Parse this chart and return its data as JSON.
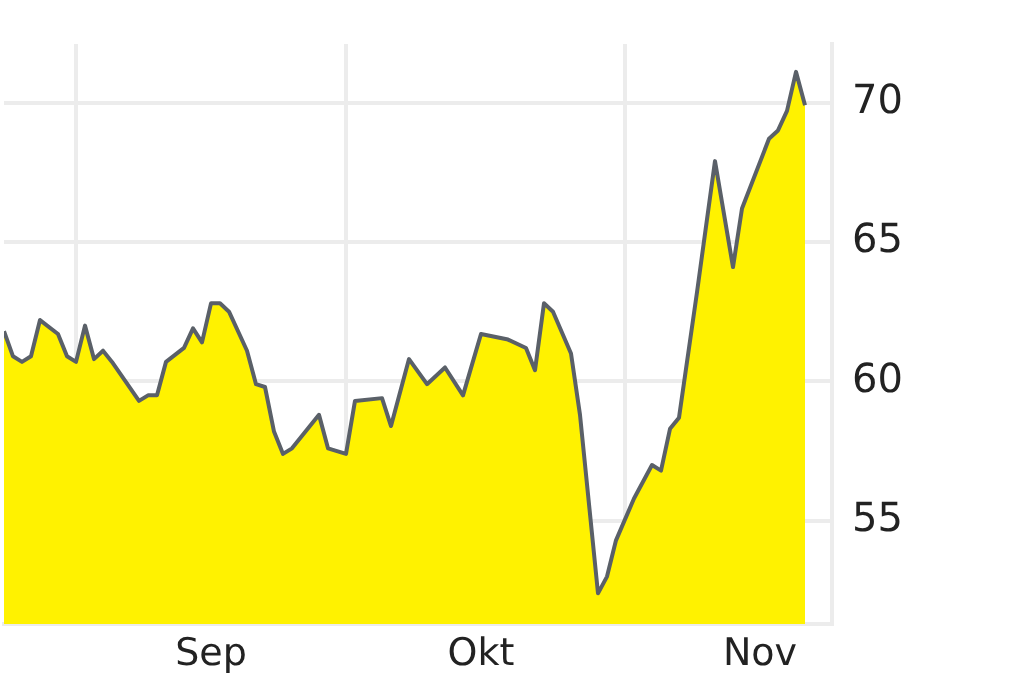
{
  "chart_data": {
    "type": "area",
    "x": [
      "--08-24",
      "--08-25",
      "--08-26",
      "--08-27",
      "--08-28",
      "--08-30",
      "--08-31",
      "--09-01",
      "--09-02",
      "--09-03",
      "--09-04",
      "--09-05",
      "--09-08",
      "--09-09",
      "--09-10",
      "--09-11",
      "--09-13",
      "--09-14",
      "--09-15",
      "--09-16",
      "--09-17",
      "--09-18",
      "--09-20",
      "--09-21",
      "--09-22",
      "--09-23",
      "--09-24",
      "--09-25",
      "--09-28",
      "--09-29",
      "--10-01",
      "--10-02",
      "--10-05",
      "--10-06",
      "--10-08",
      "--10-10",
      "--10-12",
      "--10-14",
      "--10-15",
      "--10-16",
      "--10-19",
      "--10-21",
      "--10-22",
      "--10-23",
      "--10-24",
      "--10-26",
      "--10-27",
      "--10-29",
      "--10-30",
      "--10-31",
      "--11-02",
      "--11-04",
      "--11-05",
      "--11-06",
      "--11-07",
      "--11-09",
      "--11-11",
      "--11-13",
      "--11-14",
      "--11-17",
      "--11-18",
      "--11-19",
      "--11-20",
      "--11-21"
    ],
    "series": [
      {
        "color": "#fff200",
        "values": [
          61.8,
          60.9,
          60.7,
          60.9,
          62.2,
          61.7,
          60.9,
          60.7,
          62.0,
          60.8,
          61.1,
          60.7,
          59.3,
          59.5,
          59.5,
          60.7,
          61.2,
          61.9,
          61.4,
          62.8,
          62.8,
          62.5,
          61.1,
          59.9,
          59.8,
          58.2,
          57.4,
          57.6,
          58.8,
          57.6,
          57.4,
          59.3,
          59.4,
          58.4,
          60.8,
          59.9,
          60.5,
          59.5,
          60.6,
          61.7,
          61.5,
          61.2,
          60.4,
          62.8,
          62.5,
          61.0,
          58.8,
          52.4,
          53.0,
          54.3,
          55.8,
          57.0,
          56.8,
          58.3,
          58.7,
          63.2,
          67.9,
          64.1,
          66.2,
          68.7,
          69.0,
          69.7,
          71.1,
          69.9
        ]
      }
    ],
    "xlim": [
      "--08-24",
      "--11-24"
    ],
    "xticks": [
      {
        "value": "--09-01",
        "label": null
      },
      {
        "value": "--09-16",
        "label": "Sep"
      },
      {
        "value": "--10-01",
        "label": null
      },
      {
        "value": "--10-16",
        "label": "Okt"
      },
      {
        "value": "--11-01",
        "label": null
      },
      {
        "value": "--11-16",
        "label": "Nov"
      }
    ],
    "ylim": [
      51.3,
      72.1
    ],
    "yticks": [
      55,
      60,
      65,
      70
    ],
    "grid": true,
    "legend": false,
    "marker": "none"
  }
}
